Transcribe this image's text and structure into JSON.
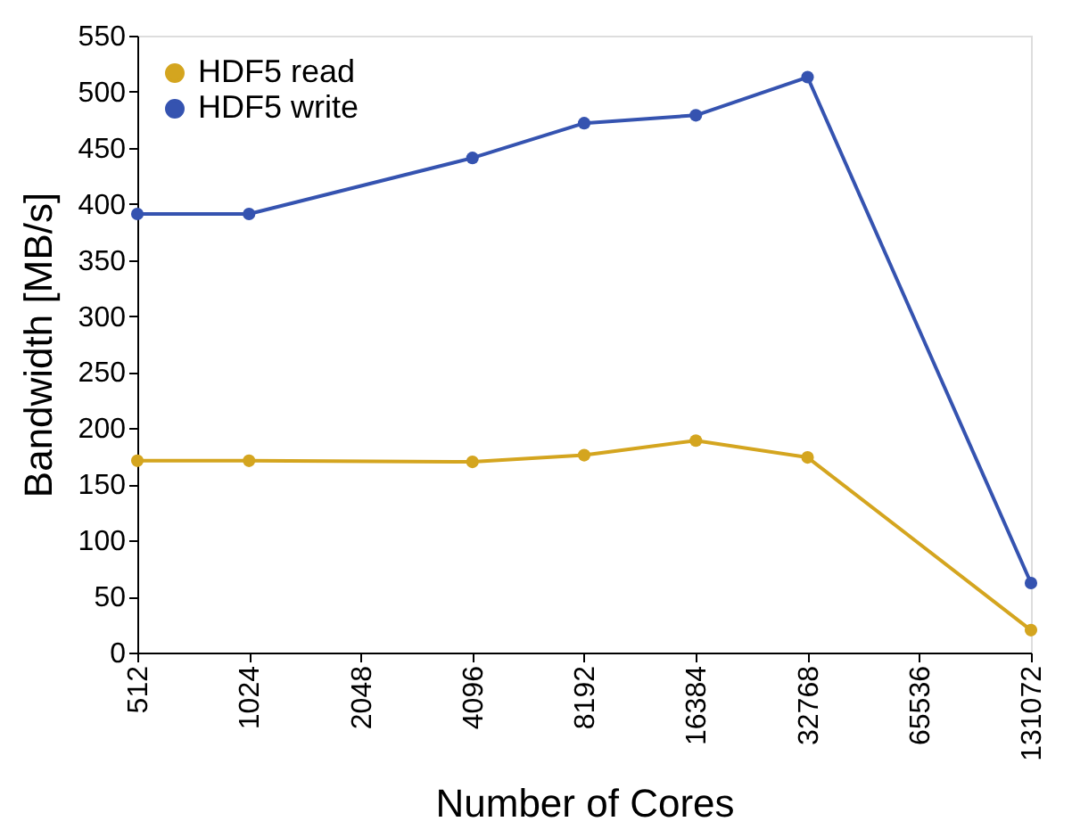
{
  "chart_data": {
    "type": "line",
    "xlabel": "Number of Cores",
    "ylabel": "Bandwidth [MB/s]",
    "x": [
      512,
      1024,
      4096,
      8192,
      16384,
      32768,
      131072
    ],
    "series": [
      {
        "name": "HDF5 read",
        "color": "#d4a51f",
        "values": [
          171,
          171,
          170,
          176,
          189,
          174,
          20
        ]
      },
      {
        "name": "HDF5 write",
        "color": "#3553b0",
        "values": [
          391,
          391,
          441,
          472,
          479,
          513,
          62
        ]
      }
    ],
    "log": "x",
    "xlim": [
      512,
      131072
    ],
    "xticks": [
      512,
      1024,
      2048,
      4096,
      8192,
      16384,
      32768,
      65536,
      131072
    ],
    "ylim": [
      0,
      550
    ],
    "yticks": [
      0,
      50,
      100,
      150,
      200,
      250,
      300,
      350,
      400,
      450,
      500,
      550
    ],
    "grid": false,
    "legend": "top left",
    "marker": "circle",
    "line_style": "solid"
  }
}
